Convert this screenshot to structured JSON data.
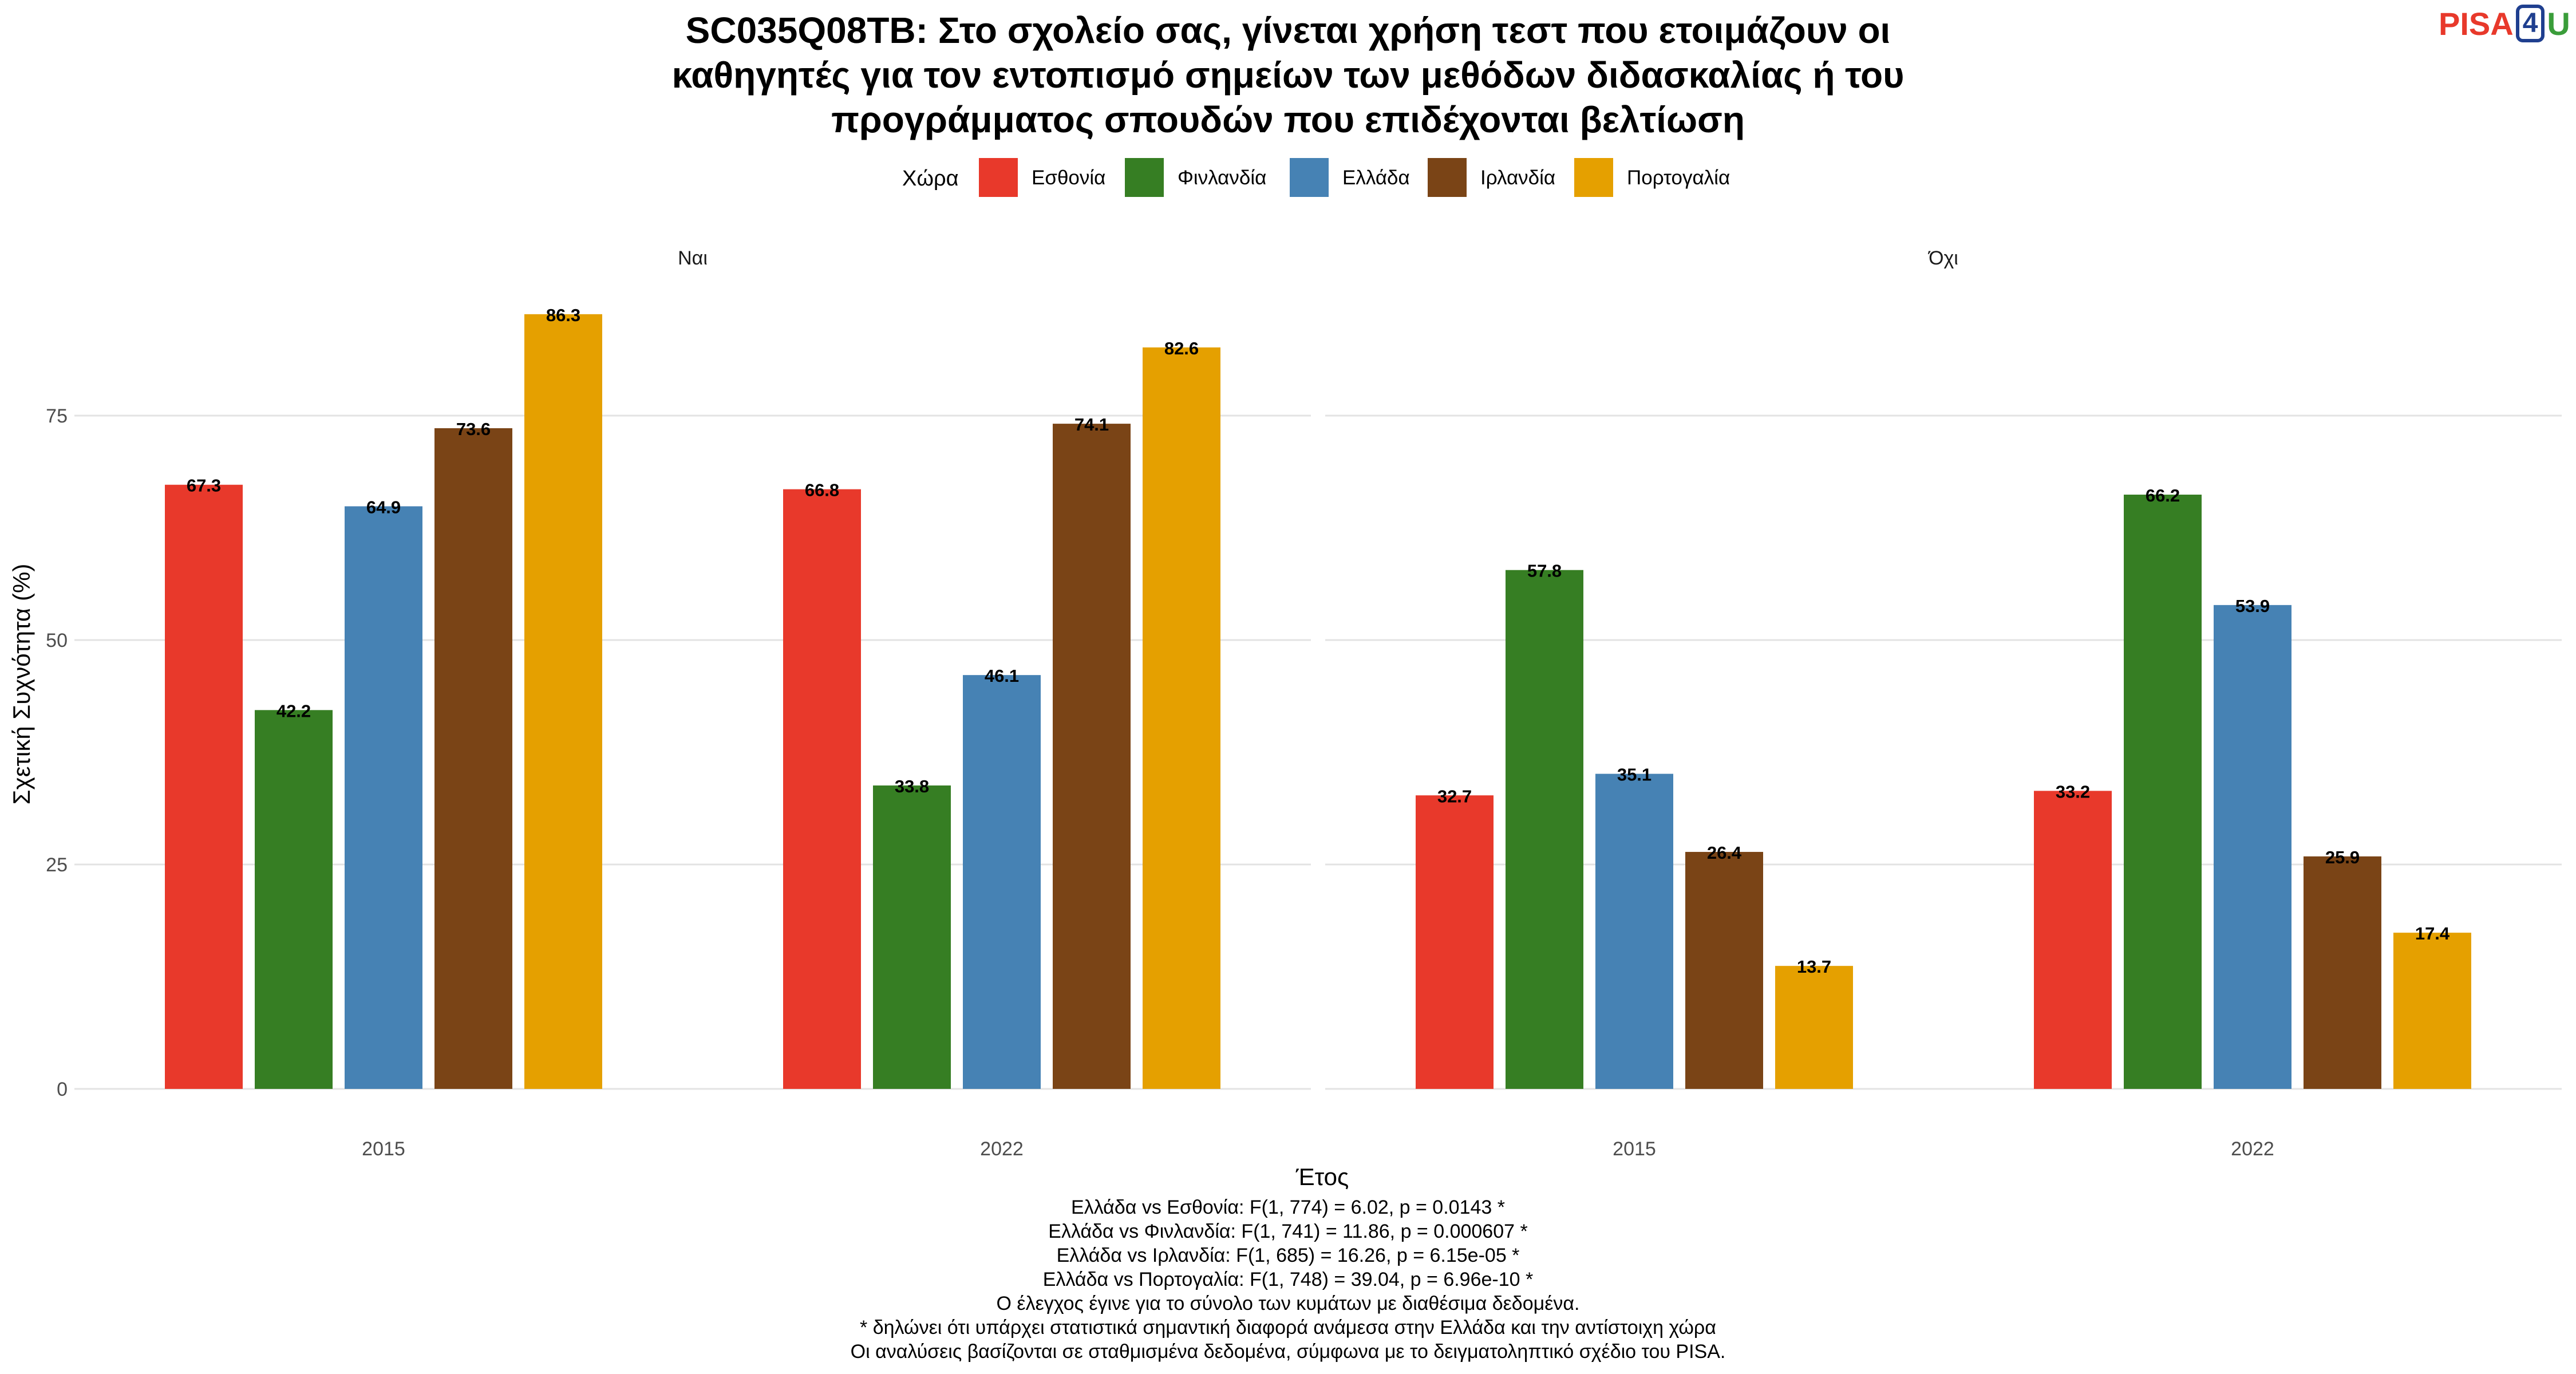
{
  "title_lines": [
    "SC035Q08TB: Στο σχολείο σας, γίνεται χρήση τεστ που ετοιμάζουν οι",
    "καθηγητές για τον εντοπισμό σημείων των μεθόδων διδασκαλίας ή του",
    "προγράμματος σπουδών που επιδέχονται βελτίωση"
  ],
  "logo": {
    "part1": "PISA",
    "part2": "4",
    "part3": "U"
  },
  "notes": [
    "Ελλάδα vs Εσθονία: F(1, 774) = 6.02, p = 0.0143 *",
    "Ελλάδα vs Φινλανδία: F(1, 741) = 11.86, p = 0.000607 *",
    "Ελλάδα vs Ιρλανδία: F(1, 685) = 16.26, p = 6.15e-05 *",
    "Ελλάδα vs Πορτογαλία: F(1, 748) = 39.04, p = 6.96e-10 *",
    "Ο έλεγχος έγινε για το σύνολο των κυμάτων με διαθέσιμα δεδομένα.",
    "* δηλώνει ότι υπάρχει στατιστικά σημαντική διαφορά ανάμεσα στην Ελλάδα και την αντίστοιχη χώρα",
    "Οι αναλύσεις βασίζονται σε σταθμισμένα δεδομένα, σύμφωνα με το δειγματοληπτικό σχέδιο του PISA."
  ],
  "chart_data": {
    "type": "bar",
    "xlabel": "Έτος",
    "ylabel": "Σχετική Συχνότητα (%)",
    "ylim": [
      0,
      90
    ],
    "yticks": [
      0,
      25,
      50,
      75
    ],
    "legend_title": "Χώρα",
    "legend_position": "top",
    "grid": true,
    "categories": [
      "2015",
      "2022"
    ],
    "series": [
      {
        "name": "Εσθονία",
        "color": "#e8392b"
      },
      {
        "name": "Φινλανδία",
        "color": "#367e23"
      },
      {
        "name": "Ελλάδα",
        "color": "#4682b4"
      },
      {
        "name": "Ιρλανδία",
        "color": "#7a4416"
      },
      {
        "name": "Πορτογαλία",
        "color": "#e5a000"
      }
    ],
    "panels": [
      {
        "label": "Ναι",
        "values": {
          "2015": [
            67.3,
            42.2,
            64.9,
            73.6,
            86.3
          ],
          "2022": [
            66.8,
            33.8,
            46.1,
            74.1,
            82.6
          ]
        }
      },
      {
        "label": "Όχι",
        "values": {
          "2015": [
            32.7,
            57.8,
            35.1,
            26.4,
            13.7
          ],
          "2022": [
            33.2,
            66.2,
            53.9,
            25.9,
            17.4
          ]
        }
      }
    ]
  }
}
